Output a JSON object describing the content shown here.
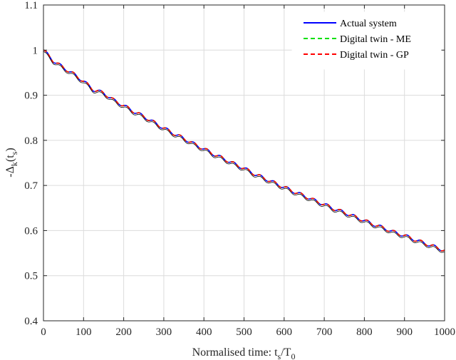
{
  "chart_data": {
    "type": "line",
    "title": "",
    "xlabel": {
      "main": "Normalised time: t",
      "sub1": "s",
      "mid": "/T",
      "sub2": "0"
    },
    "ylabel": {
      "main": "-Δ",
      "sub1": "k",
      "mid": "(t",
      "sub2": "s",
      "end": ")"
    },
    "xlim": [
      0,
      1000
    ],
    "ylim": [
      0.4,
      1.1
    ],
    "xticks": [
      0,
      100,
      200,
      300,
      400,
      500,
      600,
      700,
      800,
      900,
      1000
    ],
    "yticks": [
      0.4,
      0.5,
      0.6,
      0.7,
      0.8,
      0.9,
      1,
      1.1
    ],
    "xtick_labels": [
      "0",
      "100",
      "200",
      "300",
      "400",
      "500",
      "600",
      "700",
      "800",
      "900",
      "1000"
    ],
    "ytick_labels": [
      "0.4",
      "0.5",
      "0.6",
      "0.7",
      "0.8",
      "0.9",
      "1",
      "1.1"
    ],
    "grid": true,
    "legend_position": "top-right",
    "x": [
      0,
      25,
      50,
      75,
      100,
      125,
      150,
      175,
      200,
      225,
      250,
      275,
      300,
      325,
      350,
      375,
      400,
      425,
      450,
      475,
      500,
      525,
      550,
      575,
      600,
      625,
      650,
      675,
      700,
      725,
      750,
      775,
      800,
      825,
      850,
      875,
      900,
      925,
      950,
      975,
      1000
    ],
    "series": [
      {
        "name": "Actual system",
        "color": "#0000ff",
        "dash": "solid",
        "values": [
          1.0,
          0.976,
          0.961,
          0.947,
          0.931,
          0.912,
          0.905,
          0.889,
          0.877,
          0.864,
          0.853,
          0.84,
          0.827,
          0.815,
          0.804,
          0.792,
          0.781,
          0.769,
          0.759,
          0.748,
          0.738,
          0.726,
          0.716,
          0.706,
          0.696,
          0.686,
          0.677,
          0.667,
          0.658,
          0.648,
          0.64,
          0.631,
          0.622,
          0.613,
          0.605,
          0.596,
          0.589,
          0.58,
          0.572,
          0.564,
          0.556
        ]
      },
      {
        "name": "Digital twin - ME",
        "color": "#00e000",
        "dash": "dashed",
        "values": [
          1.0,
          0.976,
          0.961,
          0.947,
          0.931,
          0.912,
          0.905,
          0.889,
          0.877,
          0.864,
          0.853,
          0.84,
          0.827,
          0.815,
          0.804,
          0.792,
          0.781,
          0.769,
          0.759,
          0.748,
          0.738,
          0.726,
          0.716,
          0.706,
          0.696,
          0.686,
          0.677,
          0.667,
          0.658,
          0.648,
          0.64,
          0.631,
          0.622,
          0.613,
          0.605,
          0.596,
          0.589,
          0.58,
          0.572,
          0.564,
          0.556
        ]
      },
      {
        "name": "Digital twin - GP",
        "color": "#ff0000",
        "dash": "dashed",
        "values": [
          1.0,
          0.976,
          0.961,
          0.947,
          0.931,
          0.912,
          0.905,
          0.889,
          0.877,
          0.864,
          0.853,
          0.84,
          0.827,
          0.815,
          0.804,
          0.792,
          0.781,
          0.769,
          0.759,
          0.748,
          0.738,
          0.726,
          0.716,
          0.706,
          0.696,
          0.686,
          0.677,
          0.667,
          0.658,
          0.648,
          0.64,
          0.631,
          0.622,
          0.613,
          0.605,
          0.596,
          0.589,
          0.58,
          0.572,
          0.564,
          0.556
        ]
      }
    ]
  }
}
